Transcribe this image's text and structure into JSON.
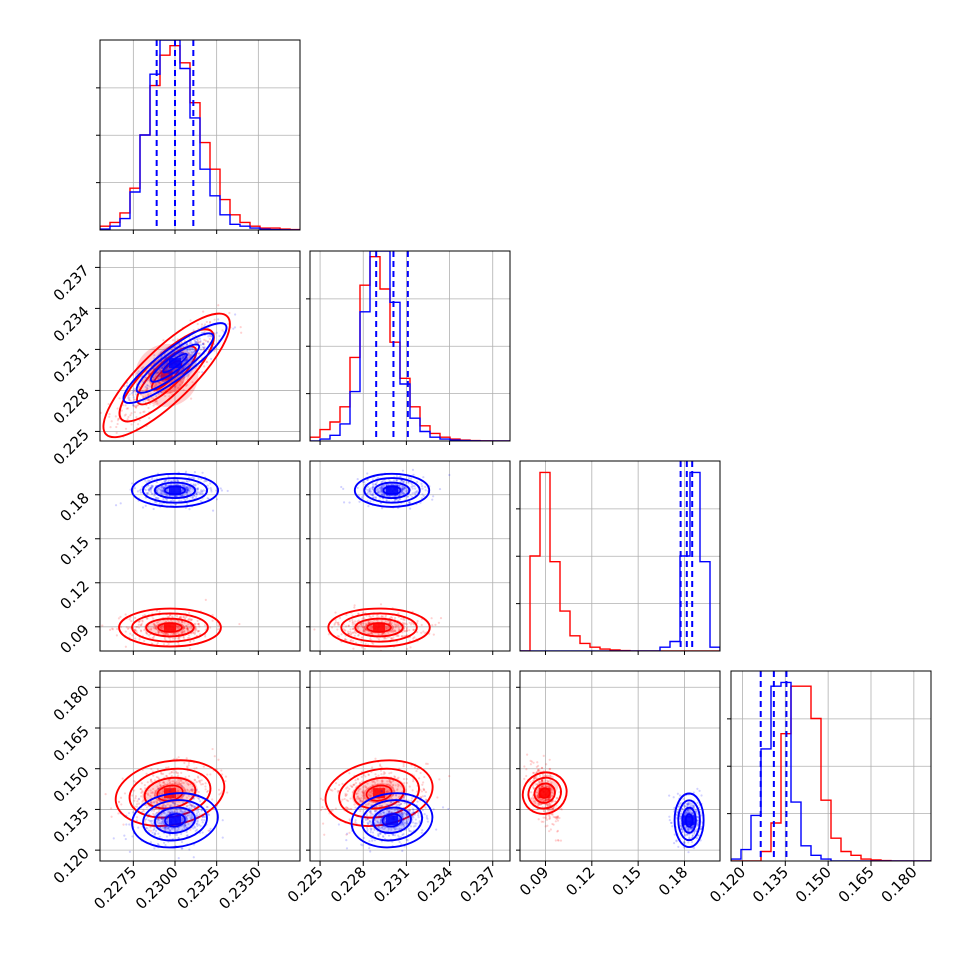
{
  "chart_data": {
    "type": "corner",
    "grid": true,
    "colors": {
      "series_a": "#ff0000",
      "series_b": "#0000ff"
    },
    "series": [
      {
        "color": "#ff0000",
        "means": [
          0.2297,
          0.2295,
          0.091,
          0.1405
        ]
      },
      {
        "color": "#0000ff",
        "means": [
          0.23,
          0.23,
          0.182,
          0.131
        ]
      }
    ],
    "params": [
      {
        "range": [
          0.2255,
          0.2375
        ],
        "ticks": [
          0.2275,
          0.23,
          0.2325,
          0.235
        ],
        "tick_labels": [
          "0.2275",
          "0.2300",
          "0.2325",
          "0.2350"
        ]
      },
      {
        "range": [
          0.2243,
          0.2382
        ],
        "ticks": [
          0.225,
          0.228,
          0.231,
          0.234,
          0.237
        ],
        "tick_labels": [
          "0.225",
          "0.228",
          "0.231",
          "0.234",
          "0.237"
        ]
      },
      {
        "range": [
          0.0735,
          0.203
        ],
        "ticks": [
          0.09,
          0.12,
          0.15,
          0.18
        ],
        "tick_labels": [
          "0.09",
          "0.12",
          "0.15",
          "0.18"
        ]
      },
      {
        "range": [
          0.116,
          0.186
        ],
        "ticks": [
          0.12,
          0.135,
          0.15,
          0.165,
          0.18
        ],
        "tick_labels": [
          "0.120",
          "0.135",
          "0.150",
          "0.165",
          "0.180"
        ]
      }
    ],
    "histograms": [
      {
        "red": [
          0.02,
          0.04,
          0.09,
          0.22,
          0.5,
          0.76,
          0.92,
          0.97,
          0.88,
          0.67,
          0.46,
          0.32,
          0.16,
          0.08,
          0.04,
          0.02,
          0.01,
          0.01,
          0.005,
          0.002
        ],
        "blue": [
          0.005,
          0.02,
          0.06,
          0.2,
          0.5,
          0.82,
          1.0,
          1.0,
          0.85,
          0.59,
          0.32,
          0.18,
          0.08,
          0.03,
          0.02,
          0.01,
          0.004,
          0.002,
          0.001,
          0.0
        ],
        "quantiles_blue": [
          0.2289,
          0.23,
          0.2311
        ]
      },
      {
        "red": [
          0.02,
          0.06,
          0.1,
          0.18,
          0.44,
          0.82,
          0.97,
          0.8,
          0.52,
          0.33,
          0.18,
          0.08,
          0.04,
          0.02,
          0.01,
          0.005,
          0.002,
          0.001,
          0.0,
          0.0
        ],
        "blue": [
          0.0,
          0.01,
          0.03,
          0.09,
          0.26,
          0.68,
          1.0,
          1.0,
          0.73,
          0.3,
          0.12,
          0.05,
          0.02,
          0.01,
          0.005,
          0.002,
          0.001,
          0.0,
          0.0,
          0.0
        ],
        "quantiles_blue": [
          0.2289,
          0.2301,
          0.2311
        ]
      },
      {
        "red": [
          0.0,
          0.5,
          0.94,
          0.47,
          0.21,
          0.08,
          0.04,
          0.02,
          0.01,
          0.005,
          0.002,
          0.0,
          0.0,
          0.0,
          0.0,
          0.0,
          0.0,
          0.0,
          0.0,
          0.0
        ],
        "blue": [
          0.0,
          0.0,
          0.0,
          0.0,
          0.0,
          0.0,
          0.0,
          0.0,
          0.0,
          0.0,
          0.0,
          0.0,
          0.0,
          0.0,
          0.02,
          0.05,
          0.5,
          0.94,
          0.47,
          0.02
        ],
        "quantiles_blue": [
          0.1775,
          0.1815,
          0.185
        ]
      },
      {
        "red": [
          0.0,
          0.0,
          0.0,
          0.05,
          0.2,
          0.67,
          0.92,
          0.92,
          0.75,
          0.32,
          0.12,
          0.05,
          0.03,
          0.01,
          0.005,
          0.002,
          0.0,
          0.0,
          0.0,
          0.0
        ],
        "blue": [
          0.01,
          0.06,
          0.24,
          0.59,
          0.92,
          0.94,
          0.31,
          0.08,
          0.03,
          0.01,
          0.0,
          0.0,
          0.0,
          0.0,
          0.0,
          0.0,
          0.0,
          0.0,
          0.0,
          0.0
        ],
        "quantiles_blue": [
          0.1264,
          0.131,
          0.1354
        ]
      }
    ],
    "pairs": [
      {
        "x": 0,
        "y": 1,
        "red": {
          "mean": [
            0.2295,
            0.2291
          ],
          "sd": [
            0.0016,
            0.0019
          ],
          "rho": 0.82
        },
        "blue": {
          "mean": [
            0.23,
            0.23
          ],
          "sd": [
            0.0012,
            0.0011
          ],
          "rho": 0.82
        }
      },
      {
        "x": 0,
        "y": 2,
        "red": {
          "mean": [
            0.2297,
            0.0895
          ],
          "sd": [
            0.0013,
            0.0055
          ],
          "rho": 0.0
        },
        "blue": {
          "mean": [
            0.23,
            0.183
          ],
          "sd": [
            0.0011,
            0.0048
          ],
          "rho": 0.0
        }
      },
      {
        "x": 1,
        "y": 2,
        "red": {
          "mean": [
            0.2291,
            0.0895
          ],
          "sd": [
            0.0015,
            0.0055
          ],
          "rho": 0.0
        },
        "blue": {
          "mean": [
            0.23,
            0.183
          ],
          "sd": [
            0.0011,
            0.0048
          ],
          "rho": 0.0
        }
      },
      {
        "x": 0,
        "y": 3,
        "red": {
          "mean": [
            0.2297,
            0.141
          ],
          "sd": [
            0.0014,
            0.005
          ],
          "rho": 0.3
        },
        "blue": {
          "mean": [
            0.23,
            0.131
          ],
          "sd": [
            0.0011,
            0.0042
          ],
          "rho": 0.2
        }
      },
      {
        "x": 1,
        "y": 3,
        "red": {
          "mean": [
            0.2291,
            0.141
          ],
          "sd": [
            0.0016,
            0.005
          ],
          "rho": 0.3
        },
        "blue": {
          "mean": [
            0.23,
            0.131
          ],
          "sd": [
            0.0012,
            0.0042
          ],
          "rho": 0.2
        }
      },
      {
        "x": 2,
        "y": 3,
        "red": {
          "mean": [
            0.0895,
            0.141
          ],
          "sd": [
            0.0045,
            0.0052
          ],
          "rho": -0.55
        },
        "blue": {
          "mean": [
            0.183,
            0.131
          ],
          "sd": [
            0.004,
            0.0042
          ],
          "rho": 0.0
        }
      }
    ],
    "contour_levels": [
      1.0,
      1.6,
      2.3
    ],
    "samples_per_series": 420
  }
}
